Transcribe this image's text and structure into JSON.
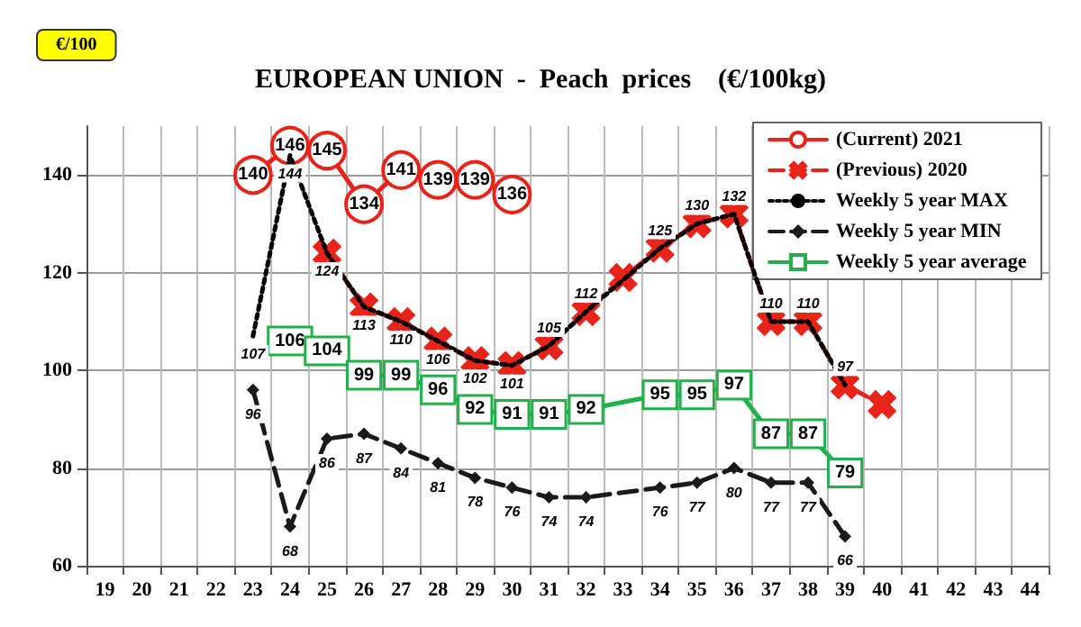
{
  "chart_data": {
    "type": "line",
    "title": "EUROPEAN UNION  -  Peach  prices    (€/100kg)",
    "annotations": [
      "€/100"
    ],
    "categories": [
      "19",
      "20",
      "21",
      "22",
      "23",
      "24",
      "25",
      "26",
      "27",
      "28",
      "29",
      "30",
      "31",
      "32",
      "33",
      "34",
      "35",
      "36",
      "37",
      "38",
      "39",
      "40",
      "41",
      "42",
      "43",
      "44"
    ],
    "ylim": [
      60,
      150
    ],
    "yticks": [
      60,
      80,
      100,
      120,
      140
    ],
    "grid": true,
    "legend": "top right",
    "series": [
      {
        "name": "(Current) 2021",
        "color": "#e8241a",
        "marker": "circle",
        "line_style": "solid",
        "data_labels": true,
        "values": [
          null,
          null,
          null,
          null,
          140,
          146,
          145,
          134,
          141,
          139,
          139,
          136,
          null,
          null,
          null,
          null,
          null,
          null,
          null,
          null,
          null,
          null,
          null,
          null,
          null,
          null
        ]
      },
      {
        "name": "(Previous) 2020",
        "color": "#e8241a",
        "marker": "cross",
        "line_style": "dashed",
        "values": [
          null,
          null,
          null,
          null,
          null,
          null,
          124,
          113,
          110,
          106,
          102,
          101,
          105,
          112,
          119,
          125,
          130,
          132,
          110,
          110,
          97,
          93,
          null,
          null,
          null,
          null
        ]
      },
      {
        "name": "Weekly 5 year MAX",
        "color": "#000000",
        "marker": "none",
        "line_style": "dotted",
        "data_labels": true,
        "values": [
          null,
          null,
          null,
          null,
          107,
          144,
          124,
          113,
          110,
          106,
          102,
          101,
          105,
          112,
          null,
          125,
          130,
          132,
          110,
          110,
          97,
          null,
          null,
          null,
          null,
          null
        ]
      },
      {
        "name": "Weekly 5 year MIN",
        "color": "#1a1a1a",
        "marker": "diamond",
        "line_style": "dashed",
        "data_labels": true,
        "values": [
          null,
          null,
          null,
          null,
          96,
          68,
          86,
          87,
          84,
          81,
          78,
          76,
          74,
          74,
          null,
          76,
          77,
          80,
          77,
          77,
          66,
          null,
          null,
          null,
          null,
          null
        ]
      },
      {
        "name": "Weekly 5 year average",
        "color": "#22b04a",
        "marker": "square",
        "line_style": "solid",
        "data_labels": true,
        "values": [
          null,
          null,
          null,
          null,
          null,
          106,
          104,
          99,
          99,
          96,
          92,
          91,
          91,
          92,
          null,
          95,
          95,
          97,
          87,
          87,
          79,
          null,
          null,
          null,
          null,
          null
        ]
      }
    ]
  }
}
